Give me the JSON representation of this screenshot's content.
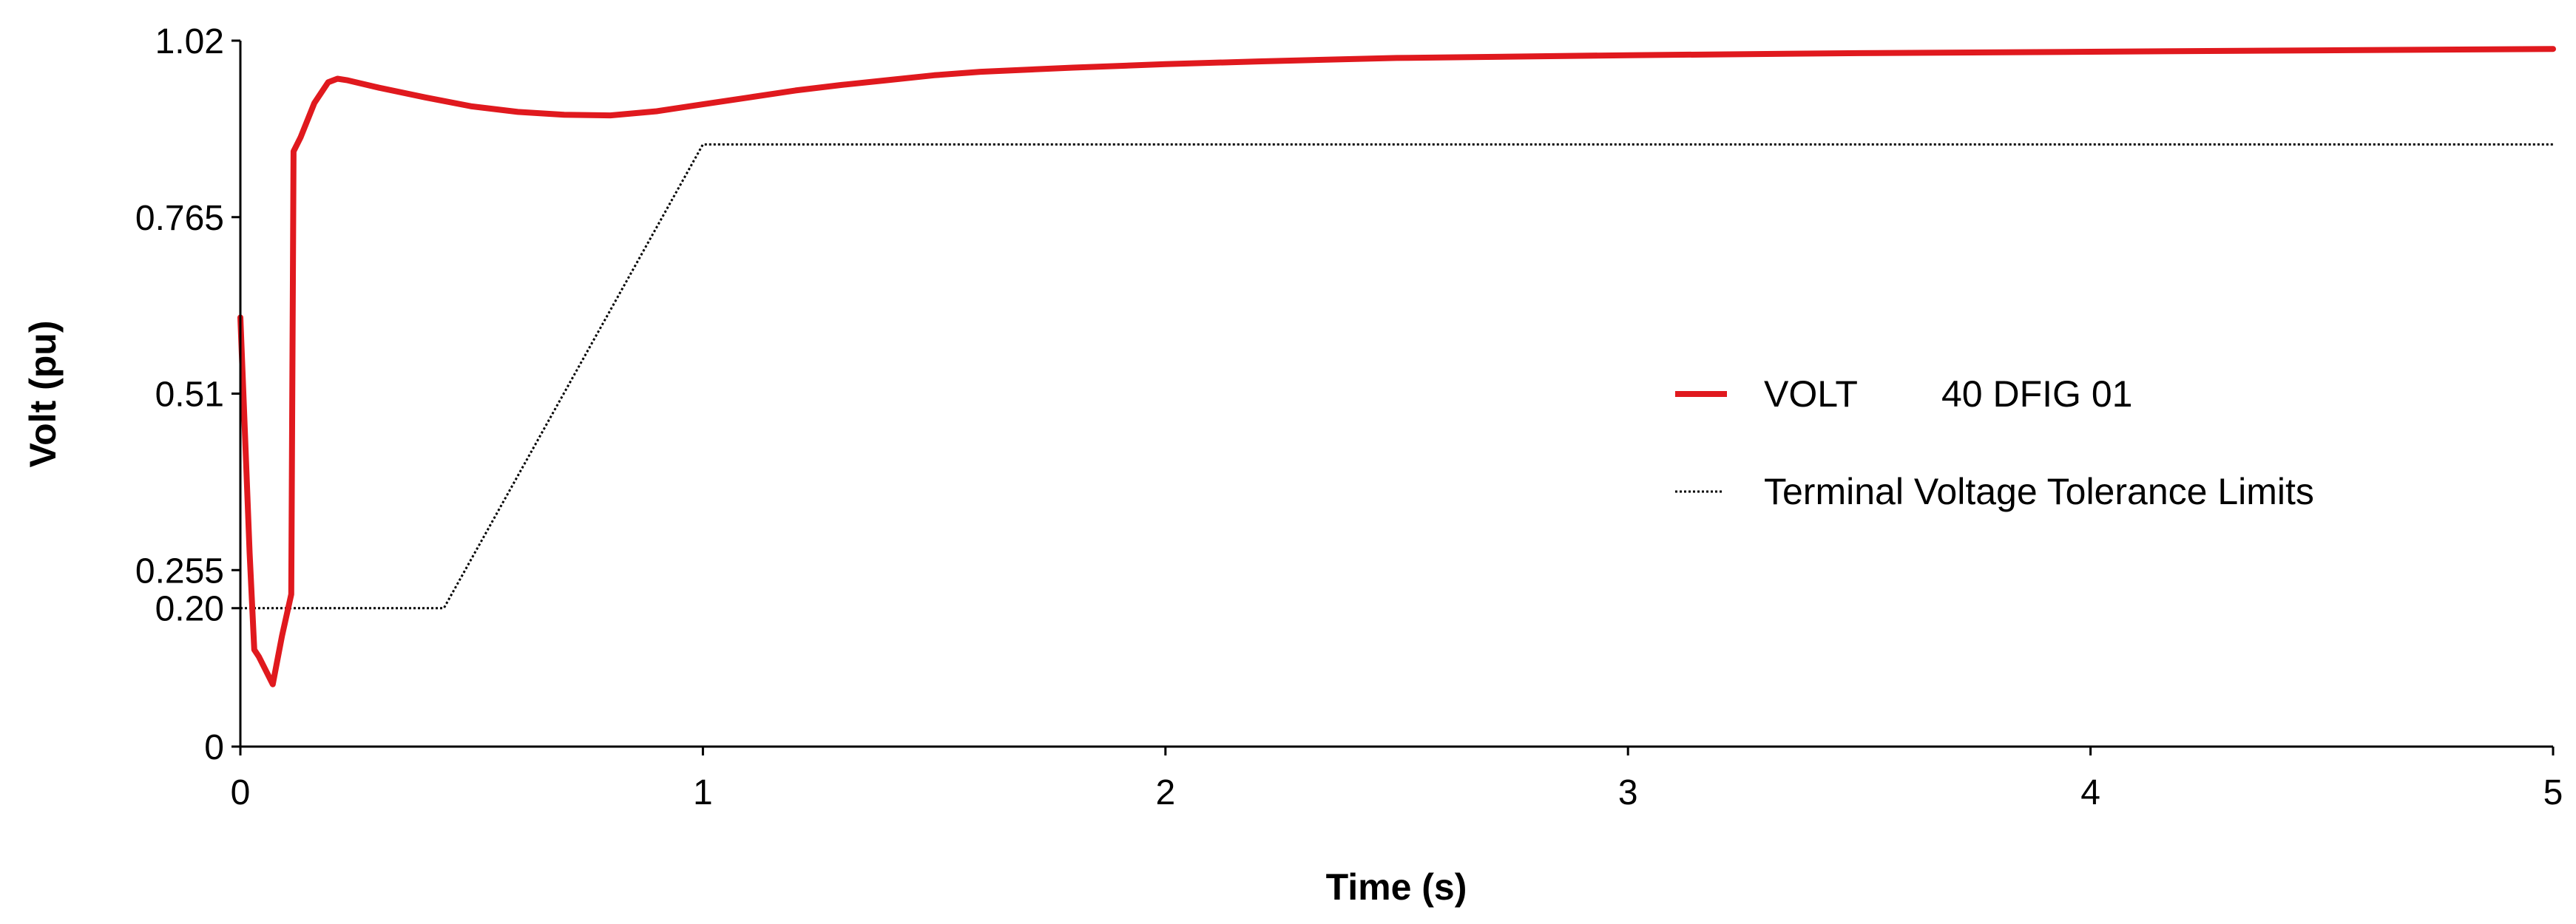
{
  "chart_data": {
    "type": "line",
    "title": "",
    "xlabel": "Time (s)",
    "ylabel": "Volt (pu)",
    "xlim": [
      0,
      5
    ],
    "ylim": [
      0,
      1.02
    ],
    "xticks": [
      {
        "value": 0,
        "label": "0"
      },
      {
        "value": 1,
        "label": "1"
      },
      {
        "value": 2,
        "label": "2"
      },
      {
        "value": 3,
        "label": "3"
      },
      {
        "value": 4,
        "label": "4"
      },
      {
        "value": 5,
        "label": "5"
      }
    ],
    "yticks": [
      {
        "value": 0,
        "label": "0"
      },
      {
        "value": 0.2,
        "label": "0.20"
      },
      {
        "value": 0.255,
        "label": "0.255"
      },
      {
        "value": 0.51,
        "label": "0.51"
      },
      {
        "value": 0.765,
        "label": "0.765"
      },
      {
        "value": 1.02,
        "label": "1.02"
      }
    ],
    "grid": false,
    "legend_position": "right",
    "series": [
      {
        "name": "VOLT",
        "name_extra": "40 DFIG 01",
        "color": "#e0191e",
        "style": "solid",
        "x": [
          0,
          0.01,
          0.02,
          0.03,
          0.04,
          0.055,
          0.07,
          0.09,
          0.11,
          0.115,
          0.13,
          0.16,
          0.19,
          0.21,
          0.23,
          0.3,
          0.4,
          0.5,
          0.6,
          0.7,
          0.8,
          0.9,
          1.0,
          1.1,
          1.2,
          1.3,
          1.4,
          1.5,
          1.6,
          1.8,
          2.0,
          2.2,
          2.5,
          3.0,
          3.5,
          4.0,
          4.5,
          5.0
        ],
        "y": [
          0.62,
          0.45,
          0.28,
          0.14,
          0.13,
          0.11,
          0.09,
          0.16,
          0.22,
          0.86,
          0.88,
          0.93,
          0.96,
          0.965,
          0.963,
          0.952,
          0.938,
          0.925,
          0.917,
          0.913,
          0.912,
          0.918,
          0.928,
          0.938,
          0.948,
          0.956,
          0.963,
          0.97,
          0.975,
          0.981,
          0.986,
          0.99,
          0.995,
          0.999,
          1.002,
          1.004,
          1.006,
          1.008
        ]
      },
      {
        "name": "Terminal Voltage Tolerance Limits",
        "color": "#000000",
        "style": "dotted",
        "x": [
          0,
          0.44,
          1.0,
          5.0
        ],
        "y": [
          0.2,
          0.2,
          0.87,
          0.87
        ]
      }
    ]
  }
}
